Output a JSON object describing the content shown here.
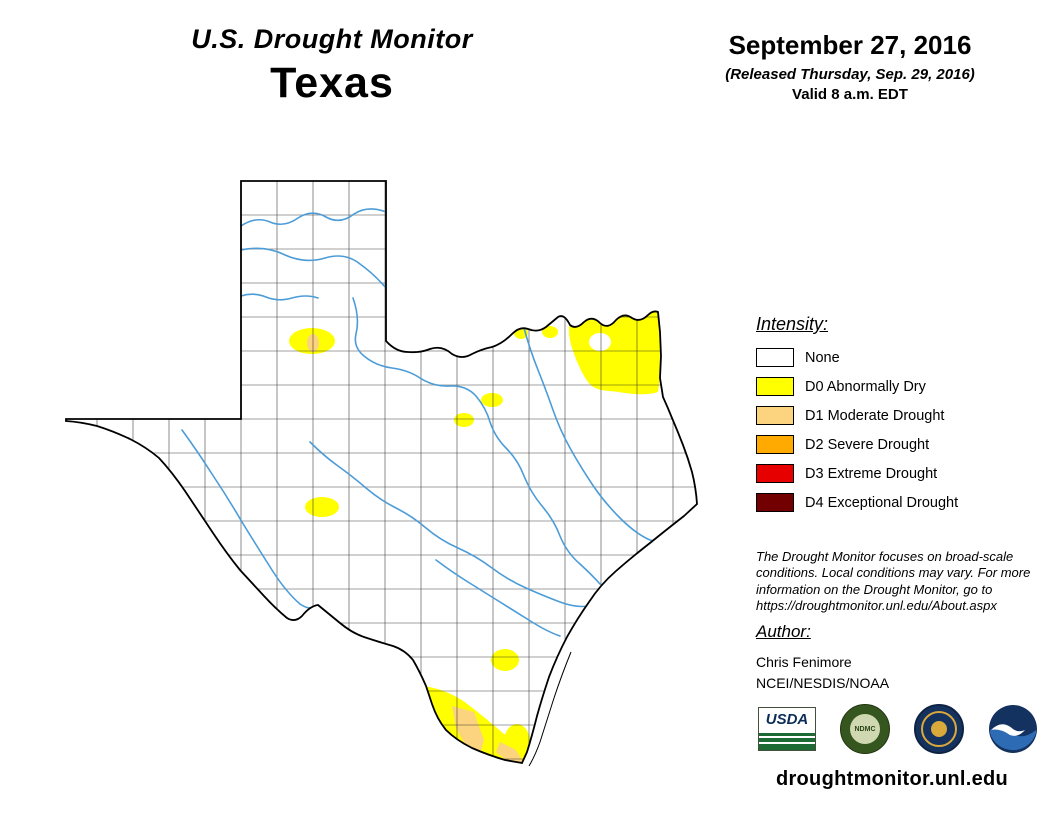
{
  "header": {
    "title": "U.S. Drought Monitor",
    "region": "Texas",
    "date": "September 27, 2016",
    "released": "(Released Thursday, Sep. 29, 2016)",
    "valid": "Valid 8 a.m. EDT"
  },
  "legend": {
    "title": "Intensity:",
    "items": [
      {
        "label": "None",
        "color": "#FFFFFF"
      },
      {
        "label": "D0 Abnormally Dry",
        "color": "#FFFF00"
      },
      {
        "label": "D1 Moderate Drought",
        "color": "#FCD37F"
      },
      {
        "label": "D2 Severe Drought",
        "color": "#FFAA00"
      },
      {
        "label": "D3 Extreme Drought",
        "color": "#E60000"
      },
      {
        "label": "D4 Exceptional Drought",
        "color": "#730000"
      }
    ]
  },
  "disclaimer": "The Drought Monitor focuses on broad-scale conditions. Local conditions may vary. For more information on the Drought Monitor, go to https://droughtmonitor.unl.edu/About.aspx",
  "author": {
    "heading": "Author:",
    "name": "Chris Fenimore",
    "org": "NCEI/NESDIS/NOAA"
  },
  "logos": [
    {
      "name": "usda-logo",
      "label": "USDA"
    },
    {
      "name": "ndmc-logo",
      "label": "NDMC"
    },
    {
      "name": "doc-seal-logo",
      "label": ""
    },
    {
      "name": "noaa-logo",
      "label": ""
    }
  ],
  "map": {
    "river_color": "#4C9CD8",
    "outline_color": "#000000",
    "background_color": "#FFFFFF"
  },
  "footer": {
    "url": "droughtmonitor.unl.edu"
  }
}
